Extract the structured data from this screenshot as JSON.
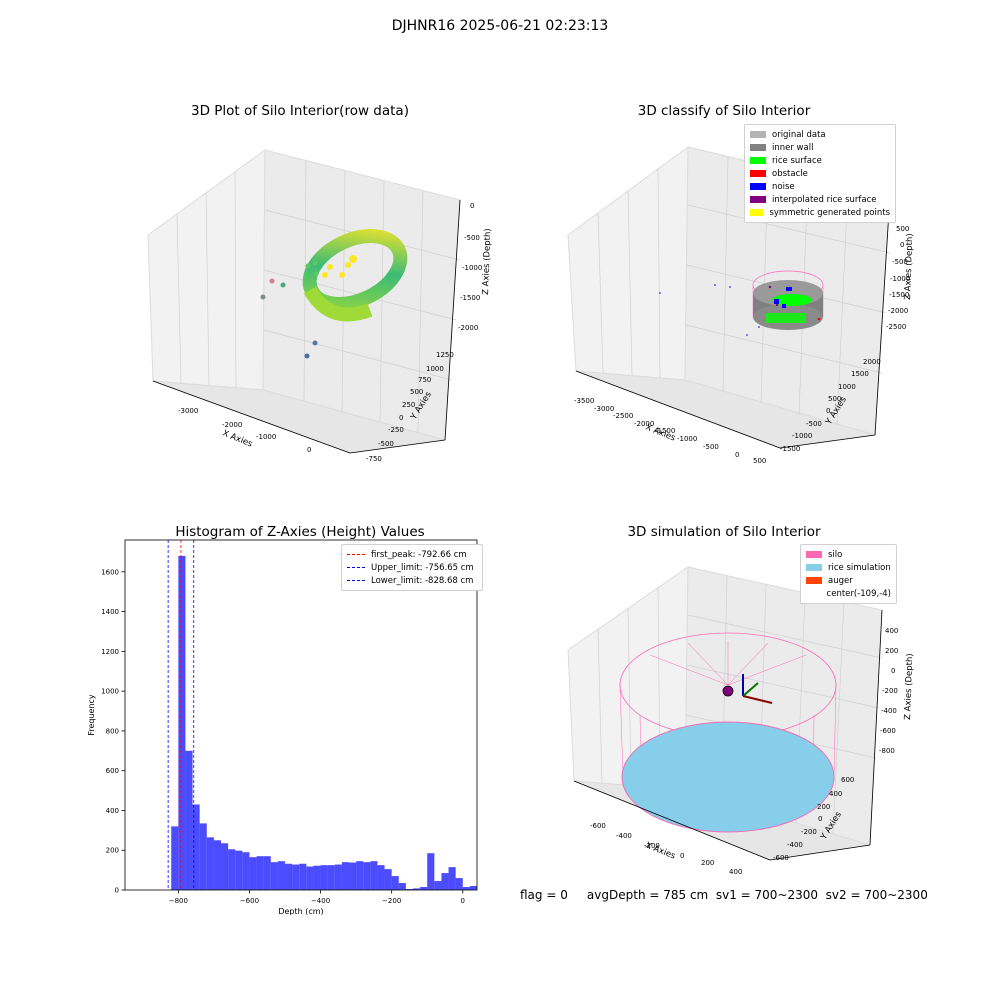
{
  "figure": {
    "suptitle": "DJHNR16 2025-06-21 02:23:13",
    "status_line": "flag = 0     avgDepth = 785 cm  sv1 = 700~2300  sv2 = 700~2300"
  },
  "panel1": {
    "title": "3D Plot of Silo Interior(row data)",
    "xlabel": "X Axies",
    "ylabel": "Y Axies",
    "zlabel": "Z Axies (Depth)",
    "xticks": [
      "-3000",
      "-2000",
      "-1000",
      "0"
    ],
    "yticks": [
      "-750",
      "-500",
      "-250",
      "0",
      "250",
      "500",
      "750",
      "1000",
      "1250"
    ],
    "zticks": [
      "0",
      "-500",
      "-1000",
      "-1500",
      "-2000"
    ]
  },
  "panel2": {
    "title": "3D classify of Silo Interior",
    "xlabel": "X Axies",
    "ylabel": "Y Axies",
    "zlabel": "Z Axies (Depth)",
    "xticks": [
      "-3500",
      "-3000",
      "-2500",
      "-2000",
      "-1500",
      "-1000",
      "-500",
      "0",
      "500"
    ],
    "yticks": [
      "-1500",
      "-1000",
      "-500",
      "0",
      "500",
      "1000",
      "1500",
      "2000"
    ],
    "zticks": [
      "500",
      "0",
      "-500",
      "-1000",
      "-1500",
      "-2000",
      "-2500"
    ],
    "legend": [
      {
        "label": "original data",
        "color": "#b3b3b3"
      },
      {
        "label": "inner wall",
        "color": "#808080"
      },
      {
        "label": "rice surface",
        "color": "#00ff00"
      },
      {
        "label": "obstacle",
        "color": "#ff0000"
      },
      {
        "label": "noise",
        "color": "#0000ff"
      },
      {
        "label": "interpolated rice surface",
        "color": "#800080"
      },
      {
        "label": "symmetric generated points",
        "color": "#ffff00"
      }
    ]
  },
  "panel4": {
    "title": "3D simulation of Silo Interior",
    "xlabel": "X Axies",
    "ylabel": "Y Axies",
    "zlabel": "Z Axies (Depth)",
    "xticks": [
      "-600",
      "-400",
      "-200",
      "0",
      "200",
      "400"
    ],
    "yticks": [
      "-600",
      "-400",
      "-200",
      "0",
      "200",
      "400",
      "600"
    ],
    "zticks": [
      "400",
      "200",
      "0",
      "-200",
      "-400",
      "-600",
      "-800"
    ],
    "legend": [
      {
        "label": "silo",
        "color": "#ff69b4"
      },
      {
        "label": "rice simulation",
        "color": "#87ceeb"
      },
      {
        "label": "auger",
        "color": "#ff4500"
      },
      {
        "label": "center(-109,-4)",
        "color": ""
      }
    ]
  },
  "chart_data": {
    "type": "bar",
    "title": "Histogram of Z-Axies (Height) Values",
    "xlabel": "Depth (cm)",
    "ylabel": "Frequency",
    "xlim": [
      -950,
      40
    ],
    "ylim": [
      0,
      1760
    ],
    "xticks": [
      -800,
      -600,
      -400,
      -200,
      0
    ],
    "yticks": [
      0,
      200,
      400,
      600,
      800,
      1000,
      1200,
      1400,
      1600
    ],
    "bar_color": "#0000ff",
    "bin_width": 20,
    "bins": [
      {
        "x": -820,
        "y": 320
      },
      {
        "x": -800,
        "y": 1680
      },
      {
        "x": -780,
        "y": 700
      },
      {
        "x": -760,
        "y": 430
      },
      {
        "x": -740,
        "y": 335
      },
      {
        "x": -720,
        "y": 265
      },
      {
        "x": -700,
        "y": 250
      },
      {
        "x": -680,
        "y": 235
      },
      {
        "x": -660,
        "y": 205
      },
      {
        "x": -640,
        "y": 198
      },
      {
        "x": -620,
        "y": 190
      },
      {
        "x": -600,
        "y": 165
      },
      {
        "x": -580,
        "y": 170
      },
      {
        "x": -560,
        "y": 170
      },
      {
        "x": -540,
        "y": 140
      },
      {
        "x": -520,
        "y": 145
      },
      {
        "x": -500,
        "y": 132
      },
      {
        "x": -480,
        "y": 128
      },
      {
        "x": -460,
        "y": 132
      },
      {
        "x": -440,
        "y": 118
      },
      {
        "x": -420,
        "y": 122
      },
      {
        "x": -400,
        "y": 125
      },
      {
        "x": -380,
        "y": 125
      },
      {
        "x": -360,
        "y": 128
      },
      {
        "x": -340,
        "y": 140
      },
      {
        "x": -320,
        "y": 138
      },
      {
        "x": -300,
        "y": 145
      },
      {
        "x": -280,
        "y": 140
      },
      {
        "x": -260,
        "y": 145
      },
      {
        "x": -240,
        "y": 125
      },
      {
        "x": -220,
        "y": 105
      },
      {
        "x": -200,
        "y": 70
      },
      {
        "x": -180,
        "y": 35
      },
      {
        "x": -160,
        "y": 5
      },
      {
        "x": -140,
        "y": 8
      },
      {
        "x": -120,
        "y": 15
      },
      {
        "x": -100,
        "y": 185
      },
      {
        "x": -80,
        "y": 45
      },
      {
        "x": -60,
        "y": 85
      },
      {
        "x": -40,
        "y": 115
      },
      {
        "x": -20,
        "y": 60
      },
      {
        "x": 0,
        "y": 15
      },
      {
        "x": 20,
        "y": 20
      }
    ],
    "lines": [
      {
        "label": "first_peak: -792.66 cm",
        "x": -792.66,
        "color": "#ff0000"
      },
      {
        "label": "Upper_limit: -756.65 cm",
        "x": -756.65,
        "color": "#0000ff"
      },
      {
        "label": "Lower_limit: -828.68 cm",
        "x": -828.68,
        "color": "#0000ff"
      }
    ],
    "legend_position": "top-right"
  }
}
